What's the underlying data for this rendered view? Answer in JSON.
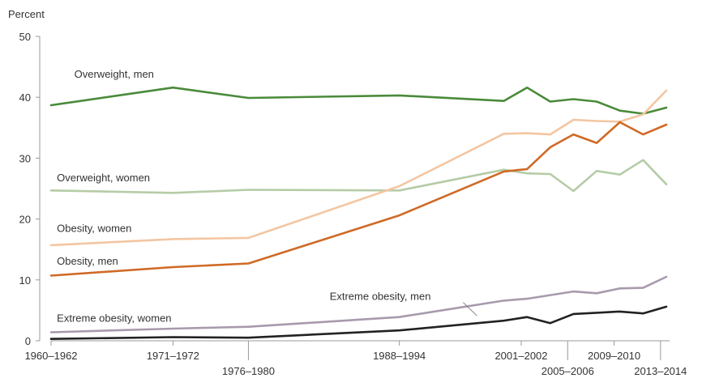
{
  "chart_data": {
    "type": "line",
    "ylabel": "Percent",
    "ylim": [
      0,
      50
    ],
    "yticks": [
      0,
      10,
      20,
      30,
      40,
      50
    ],
    "x_tick_labels": [
      {
        "x": 1961,
        "label": "1960–1962",
        "row": "top"
      },
      {
        "x": 1971.5,
        "label": "1971–1972",
        "row": "top"
      },
      {
        "x": 1978,
        "label": "1976–1980",
        "row": "bottom"
      },
      {
        "x": 1991,
        "label": "1988–1994",
        "row": "top"
      },
      {
        "x": 2001.5,
        "label": "2001–2002",
        "row": "top"
      },
      {
        "x": 2005.5,
        "label": "2005–2006",
        "row": "bottom"
      },
      {
        "x": 2009.5,
        "label": "2009–2010",
        "row": "top"
      },
      {
        "x": 2013.5,
        "label": "2013–2014",
        "row": "bottom"
      }
    ],
    "x": [
      1961,
      1971.5,
      1978,
      1991,
      2000,
      2002,
      2004,
      2006,
      2008,
      2010,
      2012,
      2014
    ],
    "series": [
      {
        "name": "Overweight, men",
        "color": "#4a8a3a",
        "values": [
          38.7,
          41.6,
          39.9,
          40.3,
          39.4,
          41.6,
          39.3,
          39.7,
          39.3,
          37.8,
          37.3,
          38.3
        ]
      },
      {
        "name": "Overweight, women",
        "color": "#b5cca6",
        "values": [
          24.7,
          24.3,
          24.8,
          24.7,
          28.1,
          27.5,
          27.4,
          24.6,
          27.9,
          27.3,
          29.7,
          25.7
        ]
      },
      {
        "name": "Obesity, women",
        "color": "#f3c6a2",
        "values": [
          15.7,
          16.7,
          16.9,
          25.4,
          34.0,
          34.1,
          33.9,
          36.3,
          36.1,
          36.0,
          37.2,
          41.1
        ]
      },
      {
        "name": "Obesity, men",
        "color": "#cf6a26",
        "values": [
          10.7,
          12.1,
          12.7,
          20.6,
          27.8,
          28.2,
          31.8,
          33.9,
          32.5,
          35.9,
          33.9,
          35.5
        ]
      },
      {
        "name": "Extreme obesity, men",
        "color": "#a89aad",
        "values": [
          1.4,
          2.0,
          2.3,
          3.9,
          6.6,
          6.9,
          7.5,
          8.1,
          7.8,
          8.6,
          8.7,
          10.5
        ]
      },
      {
        "name": "Extreme obesity, women",
        "color": "#222222",
        "values": [
          0.3,
          0.6,
          0.5,
          1.7,
          3.3,
          3.9,
          2.9,
          4.4,
          4.6,
          4.8,
          4.5,
          5.6
        ]
      }
    ],
    "annotations": [
      {
        "text": "Overweight, men",
        "x": 1963,
        "y": 43.2
      },
      {
        "text": "Overweight, women",
        "x": 1961.5,
        "y": 26.2
      },
      {
        "text": "Obesity, women",
        "x": 1961.5,
        "y": 17.9
      },
      {
        "text": "Obesity, men",
        "x": 1961.5,
        "y": 12.5
      },
      {
        "text": "Extreme obesity, women",
        "x": 1961.5,
        "y": 3.1
      },
      {
        "text": "Extreme obesity, men",
        "x": 1985,
        "y": 6.7
      }
    ],
    "grid": false,
    "legend": "none"
  }
}
